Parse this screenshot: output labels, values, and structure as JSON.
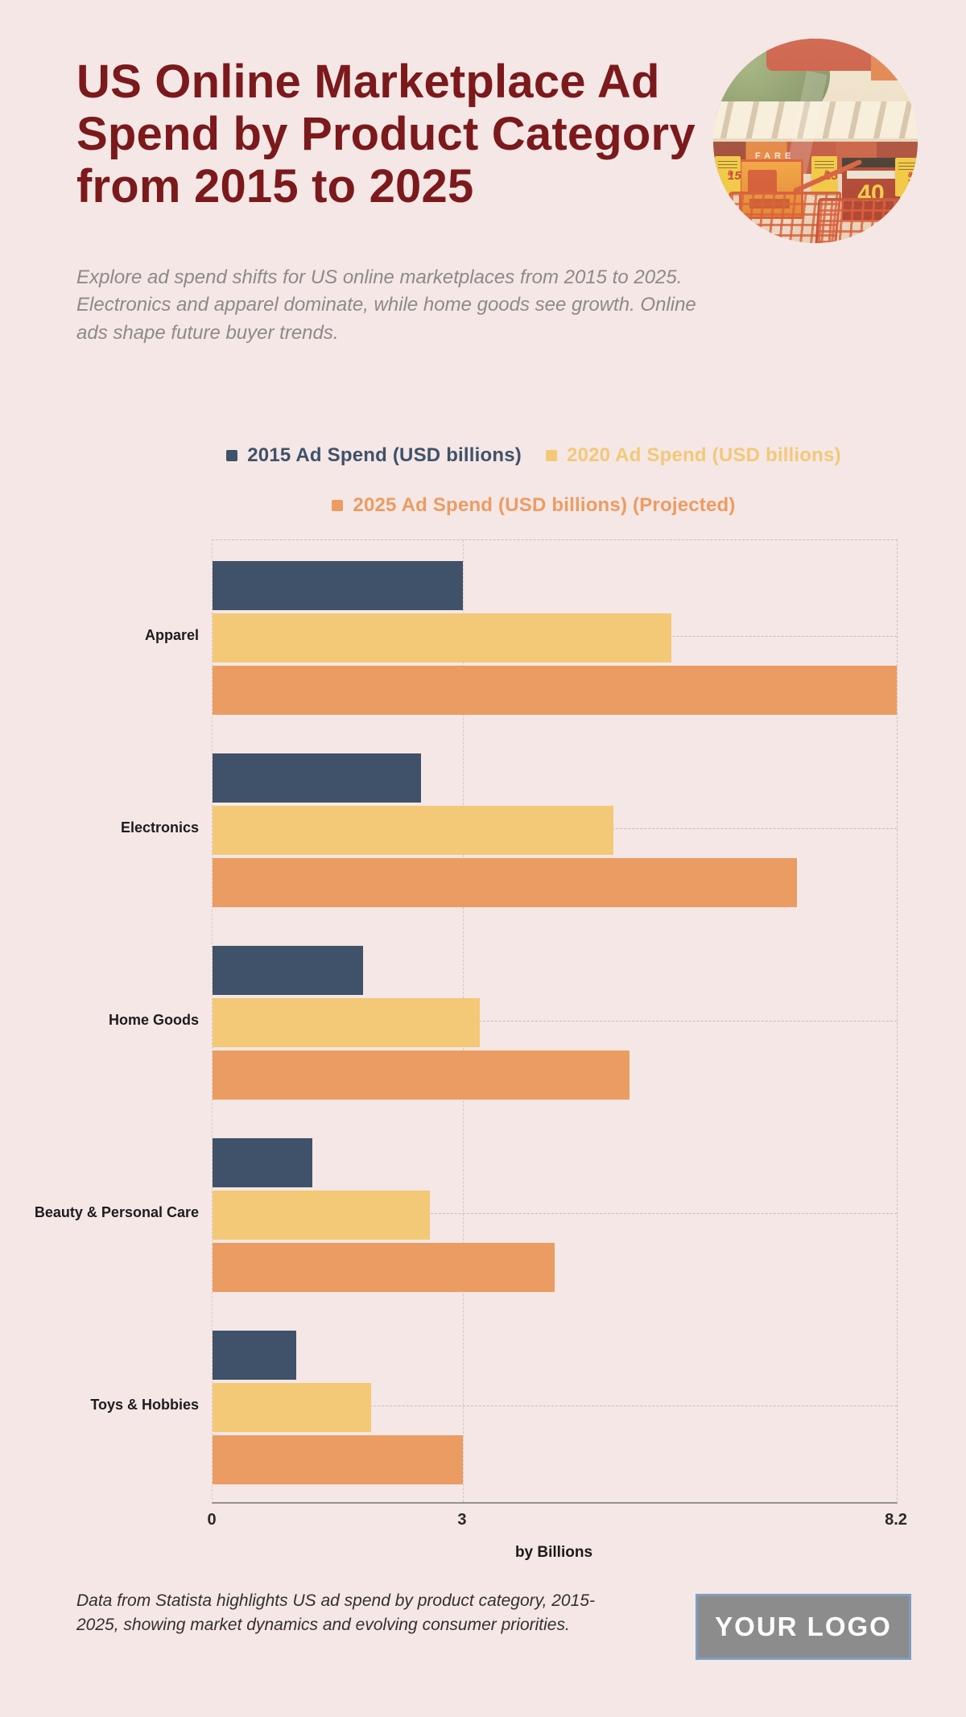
{
  "header": {
    "title_lines": [
      "US Online Marketplace Ad",
      "Spend by Product Category",
      "from 2015 to 2025"
    ],
    "subtitle": "Explore ad spend shifts for US online marketplaces from 2015 to 2025. Electronics and apparel dominate, while home goods see growth. Online ads shape future buyer trends.",
    "photo": {
      "price_tag_value": "15",
      "price_tag_sup": "8",
      "promo_sign_number": "40",
      "storefront_sign": "FARE"
    }
  },
  "chart_data": {
    "type": "bar",
    "orientation": "horizontal",
    "categories": [
      "Apparel",
      "Electronics",
      "Home Goods",
      "Beauty & Personal Care",
      "Toys & Hobbies"
    ],
    "series": [
      {
        "name": "2015 Ad Spend (USD billions)",
        "color": "#3F5269",
        "values": [
          3.0,
          2.5,
          1.8,
          1.2,
          1.0
        ]
      },
      {
        "name": "2020 Ad Spend (USD billions)",
        "color": "#F3C877",
        "values": [
          5.5,
          4.8,
          3.2,
          2.6,
          1.9
        ]
      },
      {
        "name": "2025 Ad Spend (USD billions) (Projected)",
        "color": "#EB9C63",
        "values": [
          8.2,
          7.0,
          5.0,
          4.1,
          3.0
        ]
      }
    ],
    "xlim": [
      0,
      8.2
    ],
    "xticks": [
      0,
      3,
      8.2
    ],
    "xtick_labels": [
      "0",
      "3",
      "8.2"
    ],
    "xlabel": "by Billions",
    "grid": "dashed",
    "legend_position": "top"
  },
  "footer": {
    "note": "Data from Statista highlights US ad spend by product category, 2015-2025, showing market dynamics and evolving consumer priorities.",
    "logo_text": "YOUR LOGO"
  },
  "colors": {
    "background": "#F4E7E5",
    "title": "#7B191C",
    "subtitle": "#8D8A88",
    "series_2015": "#3F5269",
    "series_2020": "#F3C877",
    "series_2025": "#EB9C63",
    "axis_line": "#94908D",
    "grid_line": "#CDBFBC",
    "category_label": "#1D1C1E",
    "logo_background": "#8C8C8C",
    "logo_border": "#7E9DC0",
    "logo_text": "#FFFFFF"
  }
}
